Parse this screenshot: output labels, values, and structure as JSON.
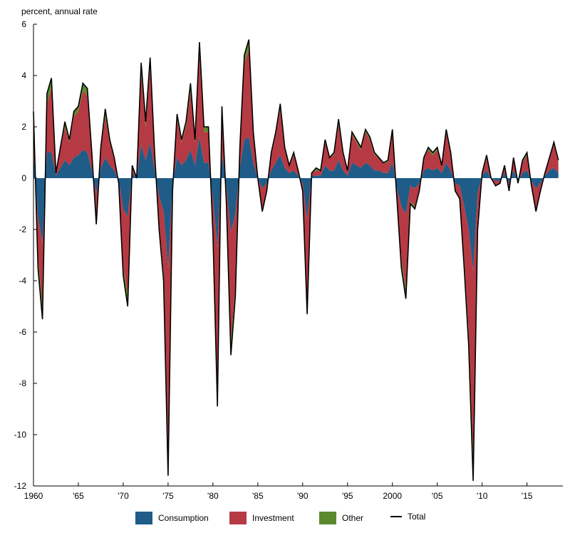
{
  "chart_data": {
    "type": "area",
    "ylabel": "percent, annual rate",
    "xlim": [
      1960,
      2019
    ],
    "ylim": [
      -12,
      6
    ],
    "yticks": [
      "6",
      "4",
      "2",
      "0",
      "-2",
      "-4",
      "-6",
      "-8",
      "-10",
      "-12"
    ],
    "xticks": [
      "1960",
      "'65",
      "'70",
      "'75",
      "'80",
      "'85",
      "'90",
      "'95",
      "2000",
      "'05",
      "'10",
      "'15"
    ],
    "colors": {
      "consumption": "#1f5c88",
      "investment": "#b63a43",
      "other": "#5b8a2e",
      "total": "#000000"
    },
    "legend": [
      {
        "key": "consumption",
        "label": "Consumption"
      },
      {
        "key": "investment",
        "label": "Investment"
      },
      {
        "key": "other",
        "label": "Other"
      },
      {
        "key": "total",
        "label": "Total"
      }
    ],
    "series": [
      {
        "name": "Total",
        "x": [
          1960,
          1960.5,
          1961,
          1961.5,
          1962,
          1962.5,
          1963,
          1963.5,
          1964,
          1964.5,
          1965,
          1965.5,
          1966,
          1966.5,
          1967,
          1967.5,
          1968,
          1968.5,
          1969,
          1969.5,
          1970,
          1970.5,
          1971,
          1971.5,
          1972,
          1972.5,
          1973,
          1973.5,
          1974,
          1974.5,
          1975,
          1975.5,
          1976,
          1976.5,
          1977,
          1977.5,
          1978,
          1978.5,
          1979,
          1979.5,
          1980,
          1980.5,
          1981,
          1981.5,
          1982,
          1982.5,
          1983,
          1983.5,
          1984,
          1984.5,
          1985,
          1985.5,
          1986,
          1986.5,
          1987,
          1987.5,
          1988,
          1988.5,
          1989,
          1989.5,
          1990,
          1990.5,
          1991,
          1991.5,
          1992,
          1992.5,
          1993,
          1993.5,
          1994,
          1994.5,
          1995,
          1995.5,
          1996,
          1996.5,
          1997,
          1997.5,
          1998,
          1998.5,
          1999,
          1999.5,
          2000,
          2000.5,
          2001,
          2001.5,
          2002,
          2002.5,
          2003,
          2003.5,
          2004,
          2004.5,
          2005,
          2005.5,
          2006,
          2006.5,
          2007,
          2007.5,
          2008,
          2008.5,
          2009,
          2009.5,
          2010,
          2010.5,
          2011,
          2011.5,
          2012,
          2012.5,
          2013,
          2013.5,
          2014,
          2014.5,
          2015,
          2015.5,
          2016,
          2016.5,
          2017,
          2017.5,
          2018,
          2018.5
        ],
        "values": [
          2.6,
          -3.5,
          -5.5,
          3.3,
          3.9,
          0.2,
          1.2,
          2.2,
          1.5,
          2.6,
          2.8,
          3.7,
          3.5,
          1.0,
          -1.8,
          1.2,
          2.7,
          1.5,
          0.8,
          -0.2,
          -3.8,
          -5.0,
          0.5,
          0.0,
          4.5,
          2.2,
          4.7,
          1.0,
          -2.0,
          -4.0,
          -11.6,
          -0.5,
          2.5,
          1.5,
          2.2,
          3.7,
          1.5,
          5.3,
          2.0,
          2.0,
          -2.2,
          -8.9,
          2.8,
          -1.0,
          -6.9,
          -4.6,
          1.2,
          4.8,
          5.4,
          1.8,
          0.0,
          -1.3,
          -0.5,
          1.0,
          1.8,
          2.9,
          1.2,
          0.5,
          1.0,
          0.3,
          -0.5,
          -5.3,
          0.2,
          0.4,
          0.3,
          1.5,
          0.8,
          1.0,
          2.3,
          1.0,
          0.3,
          1.8,
          1.5,
          1.2,
          1.9,
          1.6,
          1.0,
          0.8,
          0.6,
          0.7,
          1.9,
          -0.8,
          -3.5,
          -4.7,
          -1.0,
          -1.2,
          -0.5,
          0.8,
          1.2,
          1.0,
          1.2,
          0.5,
          1.9,
          1.0,
          -0.5,
          -0.8,
          -3.5,
          -6.5,
          -11.8,
          -2.0,
          0.2,
          0.9,
          0.0,
          -0.3,
          -0.2,
          0.5,
          -0.5,
          0.8,
          -0.2,
          0.7,
          1.0,
          -0.3,
          -1.3,
          -0.5,
          0.2,
          0.8,
          1.4,
          0.7
        ]
      },
      {
        "name": "Consumption",
        "values": [
          1.0,
          -1.5,
          -2.5,
          1.0,
          1.0,
          0.1,
          0.4,
          0.7,
          0.5,
          0.8,
          0.9,
          1.1,
          1.0,
          0.3,
          -0.6,
          0.4,
          0.8,
          0.5,
          0.3,
          -0.1,
          -1.2,
          -1.5,
          0.2,
          0.0,
          1.3,
          0.7,
          1.4,
          0.3,
          -0.7,
          -1.3,
          -3.5,
          -0.2,
          0.8,
          0.5,
          0.7,
          1.1,
          0.5,
          1.6,
          0.6,
          0.6,
          -0.8,
          -2.7,
          0.9,
          -0.3,
          -2.1,
          -1.4,
          0.4,
          1.5,
          1.6,
          0.6,
          0.0,
          -0.4,
          -0.2,
          0.3,
          0.6,
          0.9,
          0.4,
          0.2,
          0.3,
          0.1,
          -0.2,
          -1.6,
          0.1,
          0.1,
          0.1,
          0.5,
          0.3,
          0.3,
          0.7,
          0.3,
          0.1,
          0.6,
          0.5,
          0.4,
          0.6,
          0.5,
          0.3,
          0.3,
          0.2,
          0.2,
          0.6,
          -0.4,
          -1.1,
          -1.4,
          -0.3,
          -0.4,
          -0.2,
          0.3,
          0.4,
          0.3,
          0.4,
          0.2,
          0.6,
          0.3,
          -0.2,
          -0.3,
          -1.1,
          -2.0,
          -3.6,
          -0.6,
          0.1,
          0.3,
          0.0,
          -0.1,
          -0.1,
          0.2,
          -0.2,
          0.3,
          -0.1,
          0.2,
          0.3,
          -0.1,
          -0.4,
          -0.2,
          0.1,
          0.3,
          0.4,
          0.2
        ]
      },
      {
        "name": "Investment",
        "values": [
          1.3,
          -1.6,
          -2.5,
          1.9,
          2.5,
          0.1,
          0.7,
          1.3,
          0.9,
          1.6,
          1.7,
          2.3,
          2.2,
          0.6,
          -1.0,
          0.7,
          1.6,
          0.9,
          0.4,
          -0.1,
          -2.3,
          -3.0,
          0.3,
          0.0,
          2.8,
          1.3,
          2.9,
          0.6,
          -1.1,
          -2.4,
          -7.2,
          -0.3,
          1.5,
          0.9,
          1.3,
          2.3,
          0.9,
          3.3,
          1.2,
          1.2,
          -1.2,
          -5.5,
          1.7,
          -0.6,
          -4.3,
          -2.9,
          0.7,
          3.0,
          3.4,
          1.1,
          0.0,
          -0.8,
          -0.3,
          0.6,
          1.1,
          1.8,
          0.7,
          0.3,
          0.6,
          0.2,
          -0.3,
          -3.3,
          0.1,
          0.2,
          0.2,
          0.9,
          0.5,
          0.6,
          1.4,
          0.6,
          0.2,
          1.1,
          0.9,
          0.7,
          1.2,
          1.0,
          0.6,
          0.5,
          0.4,
          0.4,
          1.2,
          -0.4,
          -2.1,
          -2.9,
          -0.6,
          -0.7,
          -0.3,
          0.5,
          0.7,
          0.6,
          0.7,
          0.3,
          1.2,
          0.6,
          -0.3,
          -0.5,
          -2.1,
          -4.0,
          -7.3,
          -1.2,
          0.1,
          0.5,
          0.0,
          -0.2,
          -0.1,
          0.3,
          -0.3,
          0.5,
          -0.1,
          0.4,
          0.6,
          -0.2,
          -0.8,
          -0.3,
          0.1,
          0.5,
          0.9,
          0.4
        ]
      },
      {
        "name": "Other",
        "values": [
          0.3,
          -0.4,
          -0.5,
          0.4,
          0.4,
          0.0,
          0.1,
          0.2,
          0.1,
          0.2,
          0.2,
          0.3,
          0.3,
          0.1,
          -0.2,
          0.1,
          0.3,
          0.1,
          0.1,
          0.0,
          -0.3,
          -0.5,
          0.0,
          0.0,
          0.4,
          0.2,
          0.4,
          0.1,
          -0.2,
          -0.3,
          -0.9,
          0.0,
          0.2,
          0.1,
          0.2,
          0.3,
          0.1,
          0.4,
          0.2,
          0.2,
          -0.2,
          -0.7,
          0.2,
          -0.1,
          -0.5,
          -0.3,
          0.1,
          0.3,
          0.4,
          0.1,
          0.0,
          -0.1,
          0.0,
          0.1,
          0.1,
          0.2,
          0.1,
          0.0,
          0.1,
          0.0,
          0.0,
          -0.4,
          0.0,
          0.1,
          0.0,
          0.1,
          0.0,
          0.1,
          0.2,
          0.1,
          0.0,
          0.1,
          0.1,
          0.1,
          0.1,
          0.1,
          0.1,
          0.0,
          0.0,
          0.1,
          0.1,
          0.0,
          -0.3,
          -0.4,
          -0.1,
          -0.1,
          0.0,
          0.0,
          0.1,
          0.1,
          0.1,
          0.0,
          0.1,
          0.1,
          0.0,
          0.0,
          -0.3,
          -0.5,
          -0.9,
          -0.2,
          0.0,
          0.1,
          0.0,
          0.0,
          0.0,
          0.0,
          0.0,
          0.0,
          0.0,
          0.1,
          0.1,
          0.0,
          -0.1,
          0.0,
          0.0,
          0.0,
          0.1,
          0.1
        ]
      }
    ]
  }
}
